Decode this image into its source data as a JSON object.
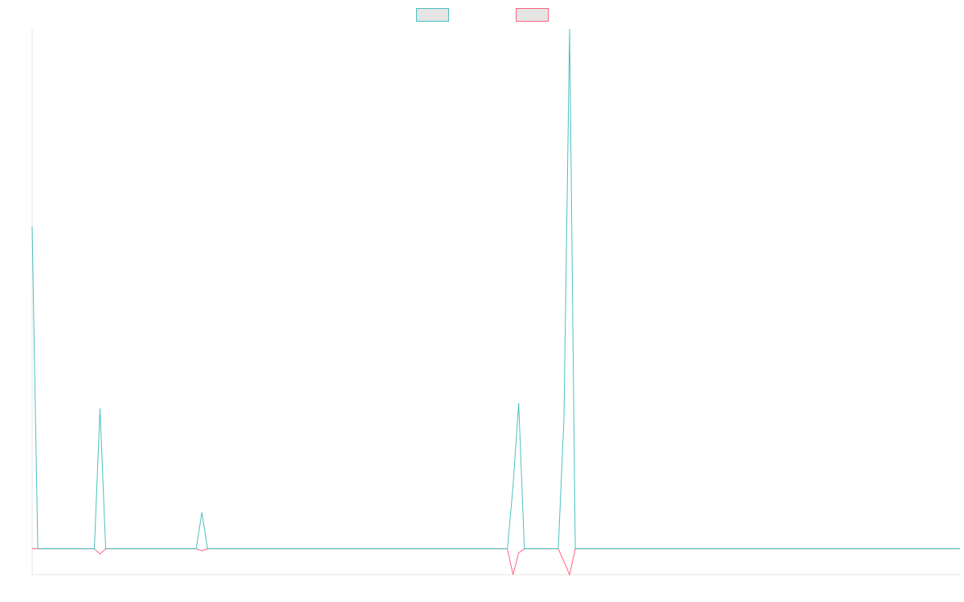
{
  "chart_data": {
    "type": "line",
    "title": "",
    "xlabel": "",
    "ylabel": "",
    "x_count": 165,
    "grid": false,
    "legend_position": "top-center",
    "ylim": [
      -0.05,
      1.0
    ],
    "series": [
      {
        "color": "#4bc0c0",
        "fill": "#e5e5e5",
        "points": [
          {
            "x": 0,
            "y": 0.62
          },
          {
            "x": 1,
            "y": 0
          },
          {
            "x": 11,
            "y": 0
          },
          {
            "x": 12,
            "y": 0.27
          },
          {
            "x": 13,
            "y": 0
          },
          {
            "x": 29,
            "y": 0
          },
          {
            "x": 30,
            "y": 0.07
          },
          {
            "x": 31,
            "y": 0
          },
          {
            "x": 84,
            "y": 0
          },
          {
            "x": 85,
            "y": 0.12
          },
          {
            "x": 86,
            "y": 0.28
          },
          {
            "x": 87,
            "y": 0
          },
          {
            "x": 93,
            "y": 0
          },
          {
            "x": 94,
            "y": 0.25
          },
          {
            "x": 95,
            "y": 1.0
          },
          {
            "x": 96,
            "y": 0
          },
          {
            "x": 164,
            "y": 0
          }
        ]
      },
      {
        "color": "#ff6384",
        "fill": "#e5e5e5",
        "points": [
          {
            "x": 0,
            "y": 0
          },
          {
            "x": 11,
            "y": 0
          },
          {
            "x": 12,
            "y": -0.01
          },
          {
            "x": 13,
            "y": 0
          },
          {
            "x": 29,
            "y": 0
          },
          {
            "x": 30,
            "y": -0.004
          },
          {
            "x": 31,
            "y": 0
          },
          {
            "x": 84,
            "y": 0
          },
          {
            "x": 85,
            "y": -0.05
          },
          {
            "x": 86,
            "y": -0.008
          },
          {
            "x": 87,
            "y": 0
          },
          {
            "x": 93,
            "y": 0
          },
          {
            "x": 94,
            "y": -0.025
          },
          {
            "x": 95,
            "y": -0.05
          },
          {
            "x": 96,
            "y": 0
          },
          {
            "x": 164,
            "y": 0
          }
        ]
      }
    ]
  }
}
